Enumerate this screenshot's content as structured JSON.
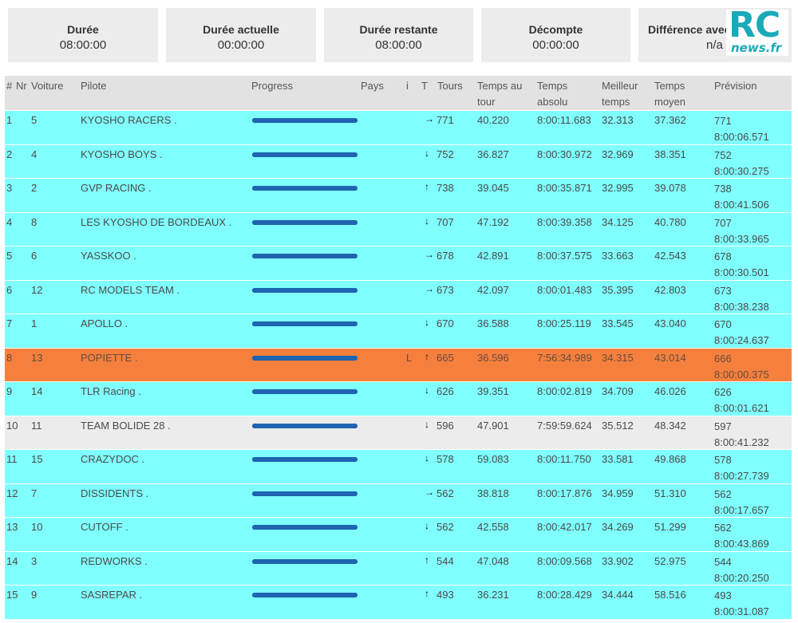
{
  "cards": [
    {
      "title": "Durée",
      "value": "08:00:00"
    },
    {
      "title": "Durée actuelle",
      "value": "00:00:00"
    },
    {
      "title": "Durée restante",
      "value": "08:00:00"
    },
    {
      "title": "Décompte",
      "value": "00:00:00"
    },
    {
      "title": "Différence avec le",
      "value": "n/a"
    }
  ],
  "logo": {
    "main": "RC",
    "sub": "news.fr"
  },
  "headers": {
    "pos": "#",
    "nr": "Nr",
    "voiture": "Voiture",
    "pilote": "Pilote",
    "progress": "Progress",
    "pays": "Pays",
    "i": "i",
    "t": "T",
    "tours": "Tours",
    "temps_tour_1": "Temps au",
    "temps_tour_2": "tour",
    "temps_abs_1": "Temps",
    "temps_abs_2": "absolu",
    "meilleur_1": "Meilleur",
    "meilleur_2": "temps",
    "moyen_1": "Temps",
    "moyen_2": "moyen",
    "prevision": "Prévision"
  },
  "trend_icons": {
    "right": "→",
    "down": "↓",
    "up": "↑"
  },
  "rows": [
    {
      "pos": "1",
      "nr": "5",
      "pilote": "KYOSHO RACERS .",
      "progress": 1,
      "i": "",
      "trend": "right",
      "tours": "771",
      "lap": "40.220",
      "abs": "8:00:11.683",
      "best": "32.313",
      "avg": "37.362",
      "prev_laps": "771",
      "prev_time": "8:00:06.571",
      "style": "cyan"
    },
    {
      "pos": "2",
      "nr": "4",
      "pilote": "KYOSHO BOYS .",
      "progress": 1,
      "i": "",
      "trend": "down",
      "tours": "752",
      "lap": "36.827",
      "abs": "8:00:30.972",
      "best": "32.969",
      "avg": "38.351",
      "prev_laps": "752",
      "prev_time": "8:00:30.275",
      "style": "cyan"
    },
    {
      "pos": "3",
      "nr": "2",
      "pilote": "GVP RACING .",
      "progress": 1,
      "i": "",
      "trend": "up",
      "tours": "738",
      "lap": "39.045",
      "abs": "8:00:35.871",
      "best": "32.995",
      "avg": "39.078",
      "prev_laps": "738",
      "prev_time": "8:00:41.506",
      "style": "cyan"
    },
    {
      "pos": "4",
      "nr": "8",
      "pilote": "LES KYOSHO DE BORDEAUX .",
      "progress": 1,
      "i": "",
      "trend": "down",
      "tours": "707",
      "lap": "47.192",
      "abs": "8:00:39.358",
      "best": "34.125",
      "avg": "40.780",
      "prev_laps": "707",
      "prev_time": "8:00:33.965",
      "style": "cyan"
    },
    {
      "pos": "5",
      "nr": "6",
      "pilote": "YASSKOO .",
      "progress": 1,
      "i": "",
      "trend": "right",
      "tours": "678",
      "lap": "42.891",
      "abs": "8:00:37.575",
      "best": "33.663",
      "avg": "42.543",
      "prev_laps": "678",
      "prev_time": "8:00:30.501",
      "style": "cyan"
    },
    {
      "pos": "6",
      "nr": "12",
      "pilote": "RC MODELS TEAM .",
      "progress": 1,
      "i": "",
      "trend": "right",
      "tours": "673",
      "lap": "42.097",
      "abs": "8:00:01.483",
      "best": "35.395",
      "avg": "42.803",
      "prev_laps": "673",
      "prev_time": "8:00:38.238",
      "style": "cyan"
    },
    {
      "pos": "7",
      "nr": "1",
      "pilote": "APOLLO .",
      "progress": 1,
      "i": "",
      "trend": "down",
      "tours": "670",
      "lap": "36.588",
      "abs": "8:00:25.119",
      "best": "33.545",
      "avg": "43.040",
      "prev_laps": "670",
      "prev_time": "8:00:24.637",
      "style": "cyan"
    },
    {
      "pos": "8",
      "nr": "13",
      "pilote": "POPIETTE .",
      "progress": 1,
      "i": "L",
      "trend": "up",
      "tours": "665",
      "lap": "36.596",
      "abs": "7:56:34.989",
      "best": "34.315",
      "avg": "43.014",
      "prev_laps": "666",
      "prev_time": "8:00:00.375",
      "style": "orange"
    },
    {
      "pos": "9",
      "nr": "14",
      "pilote": "TLR Racing .",
      "progress": 1,
      "i": "",
      "trend": "down",
      "tours": "626",
      "lap": "39.351",
      "abs": "8:00:02.819",
      "best": "34.709",
      "avg": "46.026",
      "prev_laps": "626",
      "prev_time": "8:00:01.621",
      "style": "cyan"
    },
    {
      "pos": "10",
      "nr": "11",
      "pilote": "TEAM BOLIDE 28 .",
      "progress": 1,
      "i": "",
      "trend": "down",
      "tours": "596",
      "lap": "47.901",
      "abs": "7:59:59.624",
      "best": "35.512",
      "avg": "48.342",
      "prev_laps": "597",
      "prev_time": "8:00:41.232",
      "style": "grey"
    },
    {
      "pos": "11",
      "nr": "15",
      "pilote": "CRAZYDOC .",
      "progress": 1,
      "i": "",
      "trend": "down",
      "tours": "578",
      "lap": "59.083",
      "abs": "8:00:11.750",
      "best": "33.581",
      "avg": "49.868",
      "prev_laps": "578",
      "prev_time": "8:00:27.739",
      "style": "cyan"
    },
    {
      "pos": "12",
      "nr": "7",
      "pilote": "DISSIDENTS .",
      "progress": 1,
      "i": "",
      "trend": "right",
      "tours": "562",
      "lap": "38.818",
      "abs": "8:00:17.876",
      "best": "34.959",
      "avg": "51.310",
      "prev_laps": "562",
      "prev_time": "8:00:17.657",
      "style": "cyan"
    },
    {
      "pos": "13",
      "nr": "10",
      "pilote": "CUTOFF .",
      "progress": 1,
      "i": "",
      "trend": "down",
      "tours": "562",
      "lap": "42.558",
      "abs": "8:00:42.017",
      "best": "34.269",
      "avg": "51.299",
      "prev_laps": "562",
      "prev_time": "8:00:43.869",
      "style": "cyan"
    },
    {
      "pos": "14",
      "nr": "3",
      "pilote": "REDWORKS .",
      "progress": 1,
      "i": "",
      "trend": "up",
      "tours": "544",
      "lap": "47.048",
      "abs": "8:00:09.568",
      "best": "33.902",
      "avg": "52.975",
      "prev_laps": "544",
      "prev_time": "8:00:20.250",
      "style": "cyan"
    },
    {
      "pos": "15",
      "nr": "9",
      "pilote": "SASREPAR .",
      "progress": 1,
      "i": "",
      "trend": "up",
      "tours": "493",
      "lap": "36.231",
      "abs": "8:00:28.429",
      "best": "34.444",
      "avg": "58.516",
      "prev_laps": "493",
      "prev_time": "8:00:31.087",
      "style": "cyan"
    }
  ]
}
